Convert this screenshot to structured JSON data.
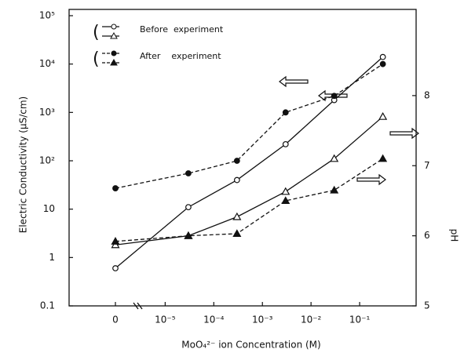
{
  "chart_data": {
    "type": "line",
    "y_label": "Electric  Conductivity  (μS/cm)",
    "y2_label": "pH",
    "x_label": "MoO₄²⁻ ion  Concentration  (M)",
    "xlog": true,
    "ylog": true,
    "x": [
      0,
      3e-05,
      0.0003,
      0.003,
      0.03,
      0.3
    ],
    "xlim": [
      3e-06,
      1
    ],
    "xticks": [
      0,
      {
        "value": 1e-05,
        "label": "10⁻⁵"
      },
      {
        "value": 0.0001,
        "label": "10⁻⁴"
      },
      {
        "value": 0.001,
        "label": "10⁻³"
      },
      {
        "value": 0.01,
        "label": "10⁻²"
      },
      {
        "value": 0.1,
        "label": "10⁻¹"
      }
    ],
    "ylim": [
      0.1,
      100000
    ],
    "yticks": [
      0.1,
      1,
      10,
      {
        "value": 100,
        "label": "10²"
      },
      {
        "value": 1000,
        "label": "10³"
      },
      {
        "value": 10000,
        "label": "10⁴"
      },
      {
        "value": 100000,
        "label": "10⁵"
      }
    ],
    "y2lim": [
      5,
      9.14
    ],
    "y2ticks": [
      5,
      6,
      7,
      8
    ],
    "legend": [
      "Before  experiment",
      "After    experiment"
    ],
    "series": [
      {
        "legend_entry": 0,
        "marker": "circle",
        "filled": false,
        "dashed": false,
        "color": "#111",
        "values": [
          0.6,
          11,
          40,
          220,
          1800,
          14000
        ]
      },
      {
        "legend_entry": 0,
        "marker": "triangle",
        "filled": false,
        "dashed": false,
        "color": "#111",
        "axis": "y2",
        "values": [
          5.87,
          6.0,
          6.27,
          6.63,
          7.1,
          7.7
        ]
      },
      {
        "legend_entry": 1,
        "marker": "circle",
        "filled": true,
        "dashed": true,
        "color": "#111",
        "values": [
          27,
          55,
          100,
          1000,
          2200,
          10000
        ]
      },
      {
        "legend_entry": 1,
        "marker": "triangle",
        "filled": true,
        "dashed": true,
        "color": "#111",
        "axis": "y2",
        "values": [
          5.92,
          6.0,
          6.03,
          6.5,
          6.65,
          7.1
        ]
      }
    ]
  }
}
